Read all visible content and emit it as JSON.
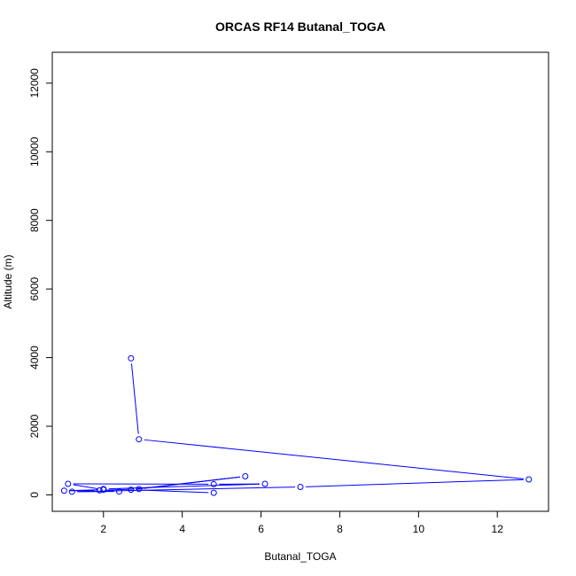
{
  "chart_data": {
    "type": "line",
    "title": "ORCAS RF14 Butanal_TOGA",
    "xlabel": "Butanal_TOGA",
    "ylabel": "Altitude (m)",
    "xlim": [
      0.7,
      13.3
    ],
    "ylim": [
      -480,
      12900
    ],
    "xticks": [
      2,
      4,
      6,
      8,
      10,
      12
    ],
    "yticks": [
      0,
      2000,
      4000,
      6000,
      8000,
      10000,
      12000
    ],
    "grid": false,
    "series": [
      {
        "color": "#0000ff",
        "marker": "open-circle",
        "points": [
          {
            "x": 2.7,
            "y": 3980
          },
          {
            "x": 2.9,
            "y": 1620
          },
          {
            "x": 12.8,
            "y": 450
          },
          {
            "x": 7.0,
            "y": 230
          },
          {
            "x": 1.2,
            "y": 90
          },
          {
            "x": 2.4,
            "y": 100
          },
          {
            "x": 2.0,
            "y": 170
          },
          {
            "x": 6.1,
            "y": 320
          },
          {
            "x": 4.8,
            "y": 310
          },
          {
            "x": 1.1,
            "y": 320
          },
          {
            "x": 2.0,
            "y": 150
          },
          {
            "x": 1.0,
            "y": 120
          },
          {
            "x": 1.9,
            "y": 130
          },
          {
            "x": 2.9,
            "y": 170
          },
          {
            "x": 5.6,
            "y": 540
          },
          {
            "x": 2.7,
            "y": 150
          },
          {
            "x": 4.8,
            "y": 60
          }
        ]
      }
    ]
  }
}
